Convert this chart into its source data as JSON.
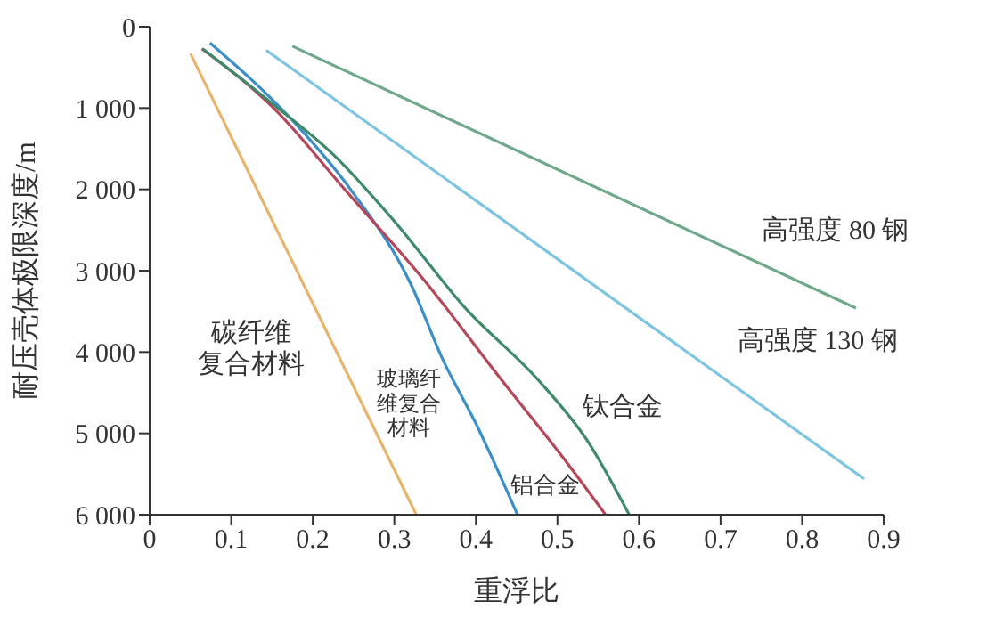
{
  "chart_data": {
    "type": "line",
    "xlabel": "重浮比",
    "ylabel": "耐压壳体极限深度/m",
    "xlim": [
      0,
      0.9
    ],
    "xticks": [
      0,
      0.1,
      0.2,
      0.3,
      0.4,
      0.5,
      0.6,
      0.7,
      0.8,
      0.9
    ],
    "ylim": [
      6000,
      0
    ],
    "yticks": [
      {
        "value": 0,
        "label": "0"
      },
      {
        "value": 1000,
        "label": "1 000"
      },
      {
        "value": 2000,
        "label": "2 000"
      },
      {
        "value": 3000,
        "label": "3 000"
      },
      {
        "value": 4000,
        "label": "4 000"
      },
      {
        "value": 5000,
        "label": "5 000"
      },
      {
        "value": 6000,
        "label": "6 000"
      }
    ],
    "grid": false,
    "legend": false,
    "marker": "none",
    "line_style": "solid",
    "series": [
      {
        "name": "碳纤维复合材料",
        "color": "#e8b46a",
        "x": [
          0.05,
          0.327
        ],
        "values": [
          330,
          6000
        ]
      },
      {
        "name": "玻璃纤维复合材料",
        "color": "#3a8fc8",
        "x": [
          0.074,
          0.173,
          0.247,
          0.321,
          0.358,
          0.403,
          0.451
        ],
        "values": [
          200,
          1130,
          2010,
          3180,
          4060,
          4940,
          6000
        ]
      },
      {
        "name": "铝合金",
        "color": "#b5475a",
        "x": [
          0.064,
          0.151,
          0.24,
          0.336,
          0.432,
          0.507,
          0.559
        ],
        "values": [
          270,
          990,
          2010,
          3110,
          4350,
          5300,
          6000
        ]
      },
      {
        "name": "钛合金",
        "color": "#3f8a6a",
        "x": [
          0.065,
          0.151,
          0.225,
          0.299,
          0.388,
          0.477,
          0.536,
          0.588
        ],
        "values": [
          270,
          950,
          1570,
          2380,
          3470,
          4350,
          5080,
          6000
        ]
      },
      {
        "name": "高强度 130 钢",
        "color": "#7cc4e0",
        "x": [
          0.143,
          0.876
        ],
        "values": [
          290,
          5560
        ]
      },
      {
        "name": "高强度 80 钢",
        "color": "#6fa88a",
        "x": [
          0.175,
          0.866
        ],
        "values": [
          240,
          3460
        ]
      }
    ]
  }
}
